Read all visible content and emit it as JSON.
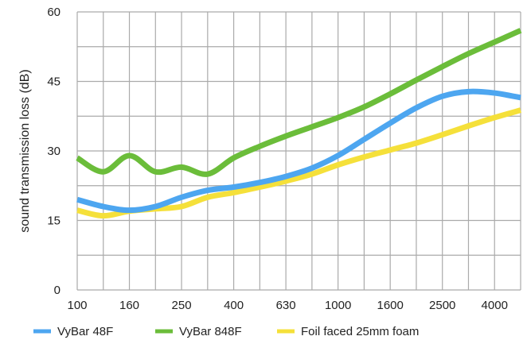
{
  "chart_data": {
    "type": "line",
    "title": "",
    "xlabel": "",
    "ylabel": "sound transmission loss (dB)",
    "ylim": [
      0,
      60
    ],
    "yticks": [
      "0",
      "15",
      "30",
      "45",
      "60"
    ],
    "categories": [
      "100",
      "125",
      "160",
      "200",
      "250",
      "315",
      "400",
      "500",
      "630",
      "800",
      "1000",
      "1250",
      "1600",
      "2000",
      "2500",
      "3150",
      "4000",
      "5000"
    ],
    "x_tick_labels": [
      "100",
      "160",
      "250",
      "400",
      "630",
      "1000",
      "1600",
      "2500",
      "4000"
    ],
    "grid": true,
    "legend_position": "bottom",
    "series": [
      {
        "name": "VyBar 48F",
        "color": "#4da6f0",
        "values": [
          19.5,
          18,
          17.2,
          18,
          20,
          21.5,
          22.2,
          23.2,
          24.5,
          26.3,
          29,
          32.5,
          36,
          39.3,
          41.8,
          42.8,
          42.5,
          41.5
        ]
      },
      {
        "name": "VyBar 848F",
        "color": "#6bbd3a",
        "values": [
          28.5,
          25.5,
          29,
          25.5,
          26.5,
          25,
          28.5,
          31,
          33.2,
          35.2,
          37.2,
          39.5,
          42.3,
          45.3,
          48.2,
          51,
          53.5,
          56
        ]
      },
      {
        "name": "Foil faced 25mm foam",
        "color": "#f5e03a",
        "values": [
          17.2,
          16,
          17,
          17.5,
          18,
          20,
          21,
          22.2,
          23.5,
          25,
          27,
          28.7,
          30.2,
          31.7,
          33.5,
          35.4,
          37.2,
          38.8
        ]
      }
    ]
  }
}
